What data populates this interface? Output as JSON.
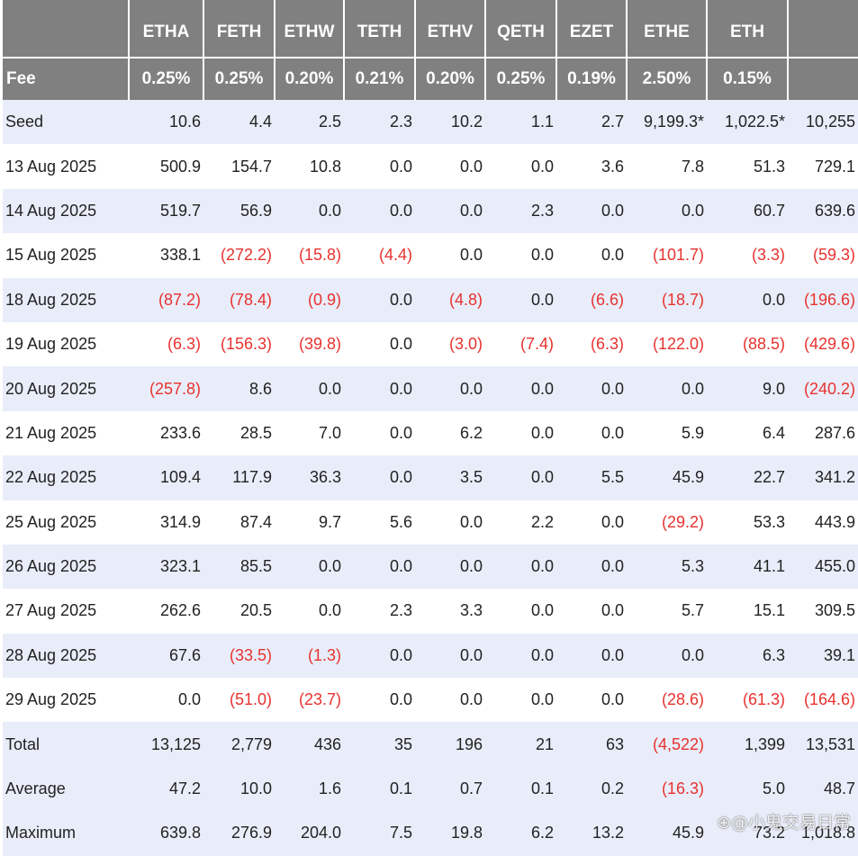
{
  "header": {
    "tickers": [
      "ETHA",
      "FETH",
      "ETHW",
      "TETH",
      "ETHV",
      "QETH",
      "EZET",
      "ETHE",
      "ETH",
      ""
    ],
    "fee_label": "Fee",
    "fees": [
      "0.25%",
      "0.25%",
      "0.20%",
      "0.21%",
      "0.20%",
      "0.25%",
      "0.19%",
      "2.50%",
      "0.15%",
      ""
    ]
  },
  "rows": [
    {
      "label": "Seed",
      "values": [
        "10.6",
        "4.4",
        "2.5",
        "2.3",
        "10.2",
        "1.1",
        "2.7",
        "9,199.3*",
        "1,022.5*",
        "10,255"
      ]
    },
    {
      "label": "13 Aug 2025",
      "values": [
        "500.9",
        "154.7",
        "10.8",
        "0.0",
        "0.0",
        "0.0",
        "3.6",
        "7.8",
        "51.3",
        "729.1"
      ]
    },
    {
      "label": "14 Aug 2025",
      "values": [
        "519.7",
        "56.9",
        "0.0",
        "0.0",
        "0.0",
        "2.3",
        "0.0",
        "0.0",
        "60.7",
        "639.6"
      ]
    },
    {
      "label": "15 Aug 2025",
      "values": [
        "338.1",
        "(272.2)",
        "(15.8)",
        "(4.4)",
        "0.0",
        "0.0",
        "0.0",
        "(101.7)",
        "(3.3)",
        "(59.3)"
      ]
    },
    {
      "label": "18 Aug 2025",
      "values": [
        "(87.2)",
        "(78.4)",
        "(0.9)",
        "0.0",
        "(4.8)",
        "0.0",
        "(6.6)",
        "(18.7)",
        "0.0",
        "(196.6)"
      ]
    },
    {
      "label": "19 Aug 2025",
      "values": [
        "(6.3)",
        "(156.3)",
        "(39.8)",
        "0.0",
        "(3.0)",
        "(7.4)",
        "(6.3)",
        "(122.0)",
        "(88.5)",
        "(429.6)"
      ]
    },
    {
      "label": "20 Aug 2025",
      "values": [
        "(257.8)",
        "8.6",
        "0.0",
        "0.0",
        "0.0",
        "0.0",
        "0.0",
        "0.0",
        "9.0",
        "(240.2)"
      ]
    },
    {
      "label": "21 Aug 2025",
      "values": [
        "233.6",
        "28.5",
        "7.0",
        "0.0",
        "6.2",
        "0.0",
        "0.0",
        "5.9",
        "6.4",
        "287.6"
      ]
    },
    {
      "label": "22 Aug 2025",
      "values": [
        "109.4",
        "117.9",
        "36.3",
        "0.0",
        "3.5",
        "0.0",
        "5.5",
        "45.9",
        "22.7",
        "341.2"
      ]
    },
    {
      "label": "25 Aug 2025",
      "values": [
        "314.9",
        "87.4",
        "9.7",
        "5.6",
        "0.0",
        "2.2",
        "0.0",
        "(29.2)",
        "53.3",
        "443.9"
      ]
    },
    {
      "label": "26 Aug 2025",
      "values": [
        "323.1",
        "85.5",
        "0.0",
        "0.0",
        "0.0",
        "0.0",
        "0.0",
        "5.3",
        "41.1",
        "455.0"
      ]
    },
    {
      "label": "27 Aug 2025",
      "values": [
        "262.6",
        "20.5",
        "0.0",
        "2.3",
        "3.3",
        "0.0",
        "0.0",
        "5.7",
        "15.1",
        "309.5"
      ]
    },
    {
      "label": "28 Aug 2025",
      "values": [
        "67.6",
        "(33.5)",
        "(1.3)",
        "0.0",
        "0.0",
        "0.0",
        "0.0",
        "0.0",
        "6.3",
        "39.1"
      ]
    },
    {
      "label": "29 Aug 2025",
      "values": [
        "0.0",
        "(51.0)",
        "(23.7)",
        "0.0",
        "0.0",
        "0.0",
        "0.0",
        "(28.6)",
        "(61.3)",
        "(164.6)"
      ]
    },
    {
      "label": "Total",
      "summary": true,
      "values": [
        "13,125",
        "2,779",
        "436",
        "35",
        "196",
        "21",
        "63",
        "(4,522)",
        "1,399",
        "13,531"
      ]
    },
    {
      "label": "Average",
      "summary": true,
      "values": [
        "47.2",
        "10.0",
        "1.6",
        "0.1",
        "0.7",
        "0.1",
        "0.2",
        "(16.3)",
        "5.0",
        "48.7"
      ]
    },
    {
      "label": "Maximum",
      "summary": true,
      "values": [
        "639.8",
        "276.9",
        "204.0",
        "7.5",
        "19.8",
        "6.2",
        "13.2",
        "45.9",
        "73.2",
        "1,018.8"
      ]
    }
  ],
  "colors": {
    "header_bg": "#808080",
    "row_band": "#e8edf9",
    "negative": "#e8322f"
  },
  "watermark": "⊕@小鬼交易日常"
}
